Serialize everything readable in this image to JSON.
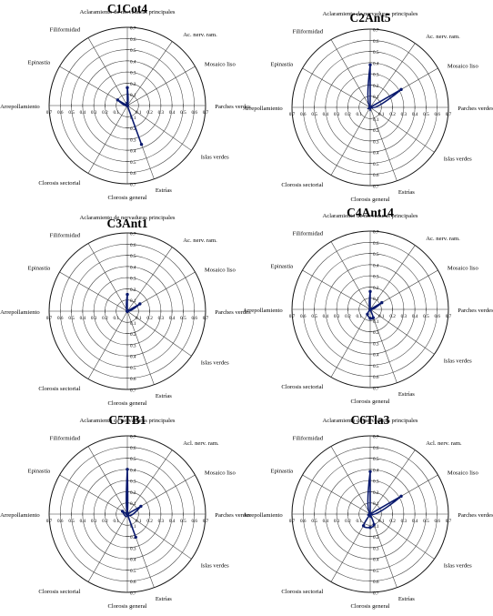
{
  "figure": {
    "spoke_labels": [
      "Aclaramiento de nervaduras principales",
      "Ac. nerv. ram.",
      "Mosaico liso",
      "Parches verdes",
      "Islas verdes",
      "Estrías",
      "Clorosis general",
      "Clorosis sectorial",
      "Arrepollamiento",
      "Epinastia",
      "Filiformidad"
    ],
    "ticks": [
      "0.1",
      "0.2",
      "0.3",
      "0.4",
      "0.5",
      "0.6",
      "0.7"
    ]
  },
  "chart_data": [
    {
      "type": "radar",
      "title": "C1Cot4",
      "rmax": 0.7,
      "ac_label": "Ac. nerv. ram.",
      "series": [
        {
          "values": [
            0.16,
            0.0,
            0.0,
            0.0,
            0.0,
            0.37,
            0.0,
            0.0,
            0.0,
            0.1,
            0.0
          ]
        }
      ],
      "color": "#0a1a6e"
    },
    {
      "type": "radar",
      "title": "C2Ant5",
      "rmax": 0.7,
      "ac_label": "Ac. nerv. ram.",
      "series": [
        {
          "values": [
            0.38,
            0.0,
            0.32,
            0.0,
            0.0,
            0.0,
            0.0,
            0.0,
            0.0,
            0.0,
            0.0
          ]
        }
      ],
      "color": "#0a1a6e"
    },
    {
      "type": "radar",
      "title": "C3Ant1",
      "rmax": 0.7,
      "ac_label": "Ac. nerv. ram.",
      "series": [
        {
          "values": [
            0.15,
            0.0,
            0.13,
            0.0,
            0.0,
            0.0,
            0.0,
            0.0,
            0.0,
            0.0,
            0.0
          ]
        }
      ],
      "color": "#0a1a6e"
    },
    {
      "type": "radar",
      "title": "C4Ant14",
      "rmax": 0.7,
      "ac_label": "Ac. nerv. ram.",
      "series": [
        {
          "values": [
            0.16,
            0.0,
            0.12,
            0.0,
            0.0,
            0.08,
            0.08,
            0.05,
            0.0,
            0.0,
            0.0
          ]
        }
      ],
      "color": "#0a1a6e"
    },
    {
      "type": "radar",
      "title": "C5TB1",
      "rmax": 0.7,
      "ac_label": "Acl. nerv. ram.",
      "series": [
        {
          "values": [
            0.4,
            0.0,
            0.14,
            0.0,
            0.0,
            0.22,
            0.0,
            0.0,
            0.0,
            0.05,
            0.0
          ]
        }
      ],
      "color": "#0a1a6e"
    },
    {
      "type": "radar",
      "title": "C6Tla3",
      "rmax": 0.7,
      "ac_label": "Acl. nerv. ram.",
      "series": [
        {
          "values": [
            0.38,
            0.0,
            0.32,
            0.0,
            0.0,
            0.1,
            0.12,
            0.12,
            0.0,
            0.0,
            0.0
          ]
        }
      ],
      "color": "#0a1a6e"
    }
  ]
}
